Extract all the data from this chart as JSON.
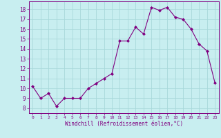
{
  "x": [
    0,
    1,
    2,
    3,
    4,
    5,
    6,
    7,
    8,
    9,
    10,
    11,
    12,
    13,
    14,
    15,
    16,
    17,
    18,
    19,
    20,
    21,
    22,
    23
  ],
  "y": [
    10.2,
    9.0,
    9.5,
    8.2,
    9.0,
    9.0,
    9.0,
    10.0,
    10.5,
    11.0,
    11.5,
    14.8,
    14.8,
    16.2,
    15.5,
    18.2,
    17.9,
    18.2,
    17.2,
    17.0,
    16.0,
    14.5,
    13.8,
    10.6
  ],
  "line_color": "#800080",
  "marker": "D",
  "marker_size": 2,
  "bg_color": "#c8eef0",
  "grid_color": "#a8d8da",
  "xlabel": "Windchill (Refroidissement éolien,°C)",
  "yticks": [
    8,
    9,
    10,
    11,
    12,
    13,
    14,
    15,
    16,
    17,
    18
  ],
  "xtick_labels": [
    "0",
    "1",
    "2",
    "3",
    "4",
    "5",
    "6",
    "7",
    "8",
    "9",
    "10",
    "11",
    "12",
    "13",
    "14",
    "15",
    "16",
    "17",
    "18",
    "19",
    "20",
    "21",
    "22",
    "23"
  ],
  "ylim": [
    7.5,
    18.8
  ],
  "xlim": [
    -0.5,
    23.5
  ]
}
